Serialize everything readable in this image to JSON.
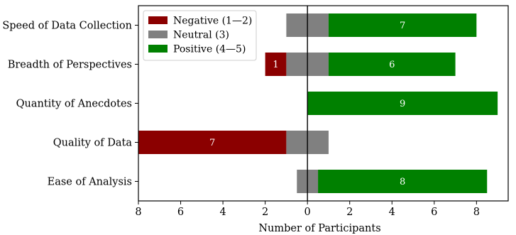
{
  "chart_data": {
    "type": "bar",
    "orientation": "horizontal-diverging",
    "xlabel": "Number of Participants",
    "xlim": [
      -8,
      9.5
    ],
    "x_ticks": [
      -8,
      -6,
      -4,
      -2,
      0,
      2,
      4,
      6,
      8
    ],
    "x_tick_labels": [
      "8",
      "6",
      "4",
      "2",
      "0",
      "2",
      "4",
      "6",
      "8"
    ],
    "grid": false,
    "legend_position": "top-left",
    "categories": [
      "Speed of Data Collection",
      "Breadth of Perspectives",
      "Quantity of Anecdotes",
      "Quality of Data",
      "Ease of Analysis"
    ],
    "series": [
      {
        "name": "Negative (1—2)",
        "color": "#8b0000",
        "values": [
          0,
          1,
          0,
          7,
          0
        ],
        "labels": [
          "",
          "1",
          "",
          "7",
          ""
        ]
      },
      {
        "name": "Neutral (3)",
        "color": "#808080",
        "values": [
          2,
          2,
          0,
          2,
          1
        ],
        "labels": [
          "",
          "",
          "",
          "",
          ""
        ]
      },
      {
        "name": "Positive (4—5)",
        "color": "#008000",
        "values": [
          7,
          6,
          9,
          0,
          8
        ],
        "labels": [
          "7",
          "6",
          "9",
          "",
          "8"
        ]
      }
    ]
  }
}
